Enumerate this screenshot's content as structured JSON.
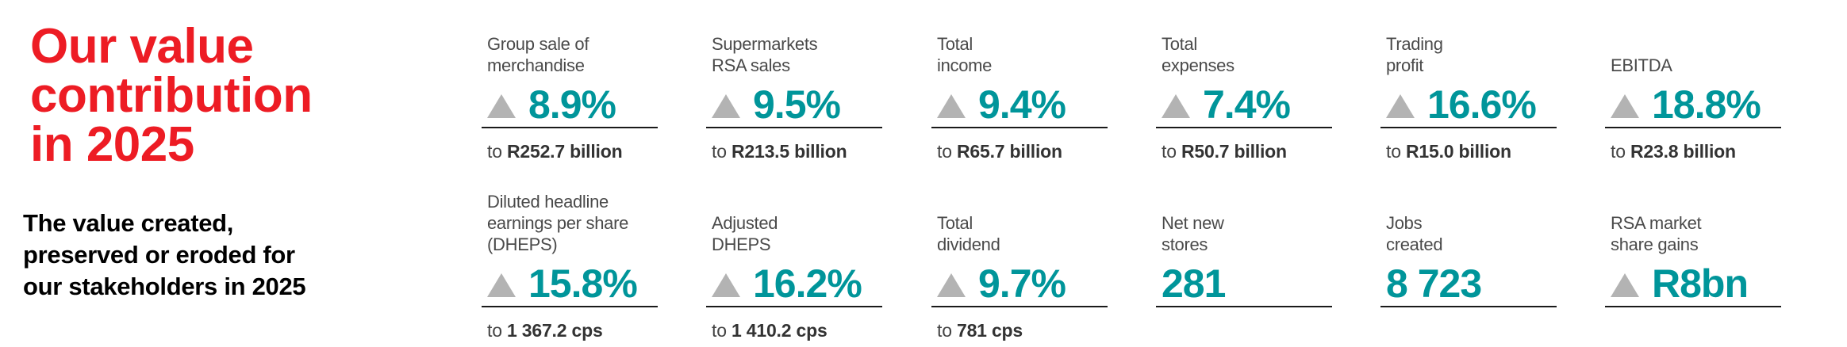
{
  "title_lines": [
    "Our value",
    "contribution",
    "in 2025"
  ],
  "subtitle_lines": [
    "The value created,",
    "preserved or eroded for",
    "our stakeholders in 2025"
  ],
  "colors": {
    "title": "#ed1c24",
    "value": "#00959a",
    "up_arrow": "#b3b3b3"
  },
  "metrics": [
    {
      "label": [
        "Group sale of",
        "merchandise"
      ],
      "arrow": "up-triangle-icon",
      "value": "8.9%",
      "sub_prefix": "to ",
      "sub_value": "R252.7 billion"
    },
    {
      "label": [
        "Supermarkets",
        "RSA sales"
      ],
      "arrow": "up-triangle-icon",
      "value": "9.5%",
      "sub_prefix": "to ",
      "sub_value": "R213.5 billion"
    },
    {
      "label": [
        "Total",
        "income"
      ],
      "arrow": "up-triangle-icon",
      "value": "9.4%",
      "sub_prefix": "to ",
      "sub_value": "R65.7 billion"
    },
    {
      "label": [
        "Total",
        "expenses"
      ],
      "arrow": "up-triangle-icon",
      "value": "7.4%",
      "sub_prefix": "to ",
      "sub_value": "R50.7 billion"
    },
    {
      "label": [
        "Trading",
        "profit"
      ],
      "arrow": "up-triangle-icon",
      "value": "16.6%",
      "sub_prefix": "to ",
      "sub_value": "R15.0 billion"
    },
    {
      "label": [
        "EBITDA"
      ],
      "arrow": "up-triangle-icon",
      "value": "18.8%",
      "sub_prefix": "to ",
      "sub_value": "R23.8 billion"
    },
    {
      "label": [
        "Diluted headline",
        "earnings per share",
        "(DHEPS)"
      ],
      "arrow": "up-triangle-icon",
      "value": "15.8%",
      "sub_prefix": "to ",
      "sub_value": "1 367.2 cps"
    },
    {
      "label": [
        "Adjusted",
        "DHEPS"
      ],
      "arrow": "up-triangle-icon",
      "value": "16.2%",
      "sub_prefix": "to ",
      "sub_value": "1 410.2 cps"
    },
    {
      "label": [
        "Total",
        "dividend"
      ],
      "arrow": "up-triangle-icon",
      "value": "9.7%",
      "sub_prefix": "to ",
      "sub_value": "781 cps"
    },
    {
      "label": [
        "Net new",
        "stores"
      ],
      "arrow": null,
      "value": "281",
      "sub_prefix": null,
      "sub_value": null
    },
    {
      "label": [
        "Jobs",
        "created"
      ],
      "arrow": null,
      "value": "8 723",
      "sub_prefix": null,
      "sub_value": null
    },
    {
      "label": [
        "RSA market",
        "share gains"
      ],
      "arrow": "up-triangle-icon",
      "value": "R8bn",
      "sub_prefix": null,
      "sub_value": null
    }
  ]
}
